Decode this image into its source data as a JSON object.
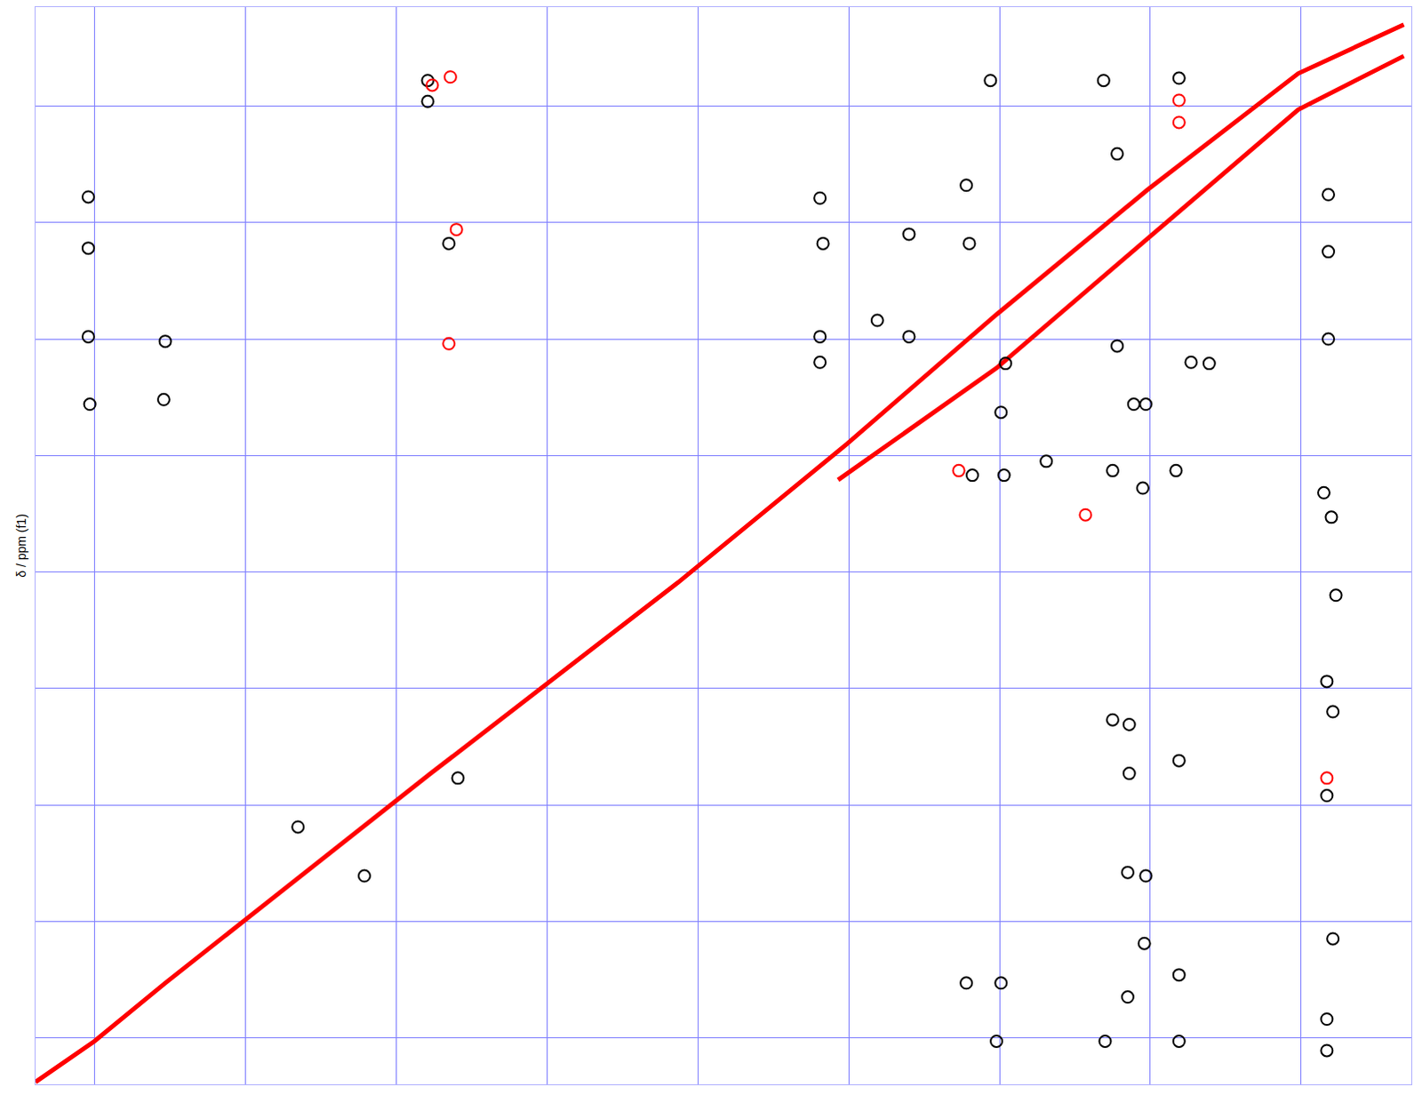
{
  "chart_data": {
    "type": "contour_scatter",
    "y_label": "δ / ppm (f1)",
    "xlim": [
      -0.39,
      8.73
    ],
    "ylim": [
      -0.4,
      8.85
    ],
    "xticks": [
      0,
      1,
      2,
      3,
      4,
      5,
      6,
      7,
      8
    ],
    "yticks": [
      0,
      1,
      2,
      3,
      4,
      5,
      6,
      7,
      8
    ],
    "grid": true,
    "tick_labels": false,
    "series": [
      {
        "type": "line",
        "color": "#ff0000",
        "line_style": "solid",
        "x": [
          -0.39,
          0,
          0.47,
          2.23,
          3.87,
          4.99,
          5.98,
          6.98,
          7.98,
          8.68
        ],
        "y": [
          -0.38,
          -0.03,
          0.47,
          2.27,
          3.91,
          5.1,
          6.21,
          7.28,
          8.28,
          8.7
        ]
      },
      {
        "type": "line",
        "color": "#ff0000",
        "line_style": "solid",
        "x": [
          4.93,
          5.98,
          6.98,
          7.98,
          8.68
        ],
        "y": [
          4.79,
          5.75,
          6.86,
          7.97,
          8.43
        ]
      },
      {
        "type": "scatter",
        "color": "#000000",
        "marker": "circle-open",
        "x": [
          -0.04,
          -0.04,
          -0.04,
          -0.03,
          0.47,
          0.46,
          2.21,
          2.21,
          2.35,
          5.94,
          6.69,
          7.19,
          4.81,
          4.83,
          5.8,
          5.78,
          5.4,
          5.4,
          5.19,
          4.81,
          4.81,
          6.04,
          6.01,
          6.78,
          6.89,
          6.97,
          7.27,
          7.39,
          8.18,
          8.18,
          8.18,
          6.75,
          7.17,
          6.31,
          5.82,
          6.03,
          6.95,
          1.35,
          1.79,
          2.41,
          5.78,
          6.01,
          5.98,
          6.7,
          7.19,
          8.17,
          8.17,
          8.17,
          8.21,
          6.86,
          7.19,
          6.75,
          6.86,
          6.85,
          6.97,
          6.96,
          7.19,
          6.85,
          8.17,
          8.21,
          8.23,
          8.2,
          8.15,
          6.78
        ],
        "y": [
          7.22,
          6.78,
          6.02,
          5.44,
          5.98,
          5.48,
          8.22,
          8.04,
          6.82,
          8.22,
          8.22,
          8.24,
          7.21,
          6.82,
          6.82,
          7.32,
          6.9,
          6.02,
          6.16,
          6.02,
          5.8,
          5.79,
          5.37,
          5.94,
          5.44,
          5.44,
          5.8,
          5.79,
          6.0,
          6.75,
          7.24,
          4.87,
          4.87,
          4.95,
          4.83,
          4.83,
          4.72,
          1.81,
          1.39,
          2.23,
          0.47,
          0.47,
          -0.03,
          -0.03,
          -0.03,
          2.08,
          0.16,
          -0.11,
          0.85,
          2.27,
          2.38,
          2.73,
          2.69,
          1.42,
          1.39,
          0.81,
          0.54,
          0.35,
          3.06,
          2.8,
          3.8,
          4.47,
          4.68,
          7.59
        ]
      },
      {
        "type": "scatter",
        "color": "#ff0000",
        "marker": "circle-open",
        "x": [
          2.36,
          2.24,
          2.4,
          2.35,
          5.73,
          6.57,
          8.17,
          7.19,
          7.19
        ],
        "y": [
          8.25,
          8.18,
          6.94,
          5.96,
          4.87,
          4.49,
          2.23,
          8.05,
          7.86
        ]
      }
    ]
  }
}
